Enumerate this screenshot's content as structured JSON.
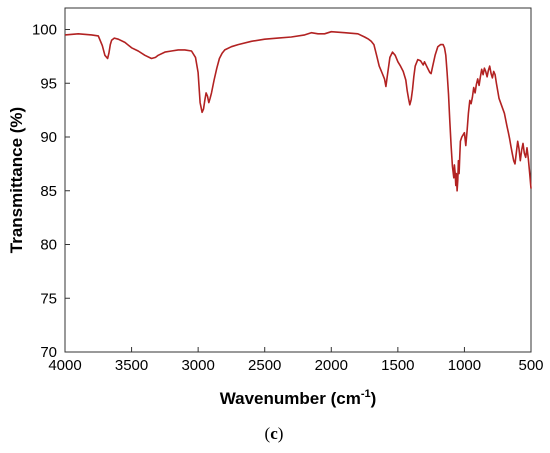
{
  "chart_data": {
    "type": "line",
    "xlabel": "Wavenumber (cm",
    "xlabel_sup": "-1",
    "xlabel_close": ")",
    "ylabel": "Transmittance (%)",
    "xlim": [
      4000,
      500
    ],
    "ylim": [
      70,
      102
    ],
    "x_axis_reversed": true,
    "xticks": [
      4000,
      3500,
      3000,
      2500,
      2000,
      1500,
      1000,
      500
    ],
    "yticks": [
      70,
      75,
      80,
      85,
      90,
      95,
      100
    ],
    "grid": false,
    "legend": "none",
    "line_color": "#b22222",
    "series": [
      {
        "x": [
          4000,
          3900,
          3800,
          3750,
          3720,
          3700,
          3680,
          3670,
          3660,
          3650,
          3630,
          3600,
          3550,
          3500,
          3450,
          3400,
          3350,
          3320,
          3300,
          3250,
          3200,
          3150,
          3100,
          3050,
          3020,
          3000,
          2985,
          2970,
          2960,
          2950,
          2940,
          2930,
          2920,
          2910,
          2900,
          2880,
          2860,
          2840,
          2820,
          2800,
          2750,
          2700,
          2600,
          2500,
          2400,
          2300,
          2200,
          2150,
          2100,
          2050,
          2000,
          1900,
          1800,
          1750,
          1720,
          1700,
          1680,
          1660,
          1640,
          1620,
          1600,
          1590,
          1580,
          1560,
          1540,
          1520,
          1500,
          1480,
          1460,
          1440,
          1430,
          1420,
          1410,
          1400,
          1390,
          1380,
          1370,
          1350,
          1330,
          1310,
          1300,
          1280,
          1260,
          1250,
          1240,
          1220,
          1200,
          1180,
          1160,
          1150,
          1140,
          1130,
          1120,
          1110,
          1100,
          1090,
          1080,
          1075,
          1070,
          1065,
          1060,
          1055,
          1050,
          1045,
          1040,
          1035,
          1030,
          1020,
          1000,
          990,
          980,
          970,
          960,
          950,
          940,
          930,
          920,
          910,
          900,
          890,
          880,
          870,
          860,
          850,
          840,
          830,
          820,
          810,
          800,
          790,
          780,
          770,
          760,
          750,
          740,
          720,
          700,
          690,
          680,
          670,
          660,
          650,
          640,
          630,
          620,
          610,
          600,
          590,
          580,
          570,
          560,
          550,
          540,
          530,
          520,
          510,
          500
        ],
        "y": [
          99.5,
          99.6,
          99.5,
          99.4,
          98.5,
          97.6,
          97.3,
          97.8,
          98.6,
          99.0,
          99.2,
          99.1,
          98.8,
          98.3,
          98.0,
          97.6,
          97.3,
          97.4,
          97.6,
          97.9,
          98.0,
          98.1,
          98.1,
          98.0,
          97.4,
          96.0,
          93.2,
          92.3,
          92.6,
          93.4,
          94.1,
          93.8,
          93.2,
          93.6,
          94.1,
          95.3,
          96.4,
          97.3,
          97.8,
          98.1,
          98.4,
          98.6,
          98.9,
          99.1,
          99.2,
          99.3,
          99.5,
          99.7,
          99.6,
          99.6,
          99.8,
          99.7,
          99.6,
          99.3,
          99.1,
          98.9,
          98.6,
          97.6,
          96.6,
          96.0,
          95.4,
          94.7,
          95.6,
          97.4,
          97.9,
          97.6,
          97.0,
          96.6,
          96.1,
          95.3,
          94.3,
          93.6,
          93.0,
          93.5,
          94.4,
          95.6,
          96.6,
          97.2,
          97.1,
          96.7,
          97.0,
          96.5,
          96.0,
          95.9,
          96.5,
          97.6,
          98.4,
          98.6,
          98.6,
          98.3,
          97.6,
          96.0,
          94.0,
          91.5,
          89.2,
          87.3,
          86.2,
          87.4,
          86.7,
          85.5,
          86.6,
          85.0,
          86.0,
          87.8,
          86.6,
          88.3,
          89.6,
          90.0,
          90.4,
          89.2,
          90.6,
          92.2,
          93.4,
          93.1,
          93.7,
          94.6,
          94.1,
          94.9,
          95.4,
          94.8,
          95.6,
          96.3,
          95.8,
          96.4,
          96.1,
          95.6,
          96.2,
          96.6,
          95.9,
          95.5,
          96.1,
          95.8,
          95.0,
          94.3,
          93.6,
          92.9,
          92.2,
          91.6,
          91.0,
          90.4,
          89.8,
          89.1,
          88.4,
          87.8,
          87.5,
          88.6,
          89.6,
          88.9,
          87.8,
          88.8,
          89.4,
          88.5,
          88.1,
          89.0,
          88.0,
          86.6,
          85.2
        ]
      }
    ]
  },
  "caption": {
    "open": "(",
    "letter": "c",
    "close": ")"
  }
}
